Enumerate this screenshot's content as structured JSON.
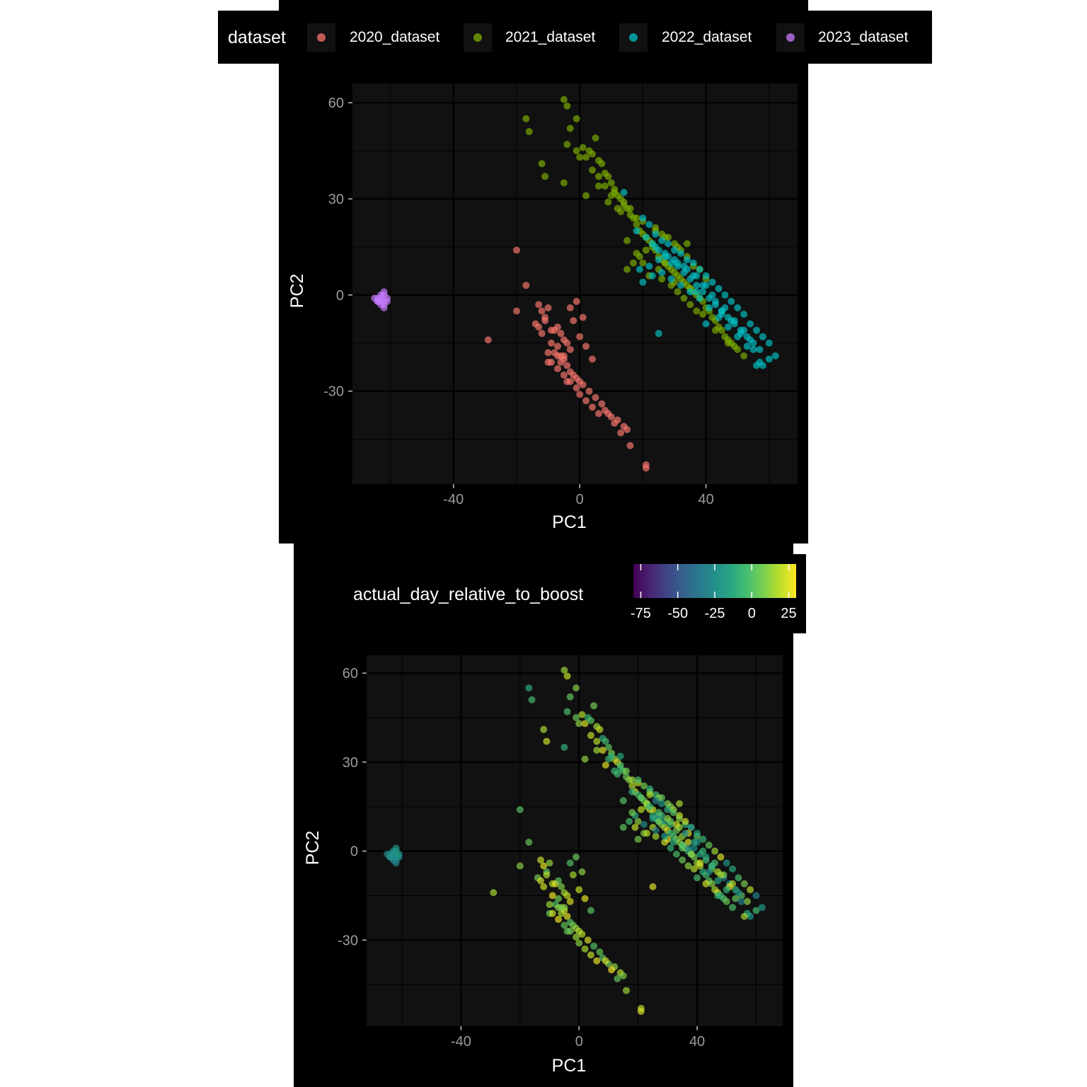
{
  "legend_top": {
    "title": "dataset",
    "items": [
      {
        "label": "2020_dataset",
        "color": "#F8766D"
      },
      {
        "label": "2021_dataset",
        "color": "#7CAE00"
      },
      {
        "label": "2022_dataset",
        "color": "#00BFC4"
      },
      {
        "label": "2023_dataset",
        "color": "#C77CFF"
      }
    ]
  },
  "legend_bottom": {
    "title": "actual_day_relative_to_boost",
    "ticks": [
      "-75",
      "-50",
      "-25",
      "0",
      "25"
    ],
    "range": [
      -80,
      30
    ],
    "tick_values": [
      -75,
      -50,
      -25,
      0,
      25
    ],
    "palette": "viridis"
  },
  "chart_data": [
    {
      "type": "scatter",
      "xlabel": "PC1",
      "ylabel": "PC2",
      "xlim": [
        -72,
        69
      ],
      "ylim": [
        -59,
        66
      ],
      "x_ticks": [
        "-40",
        "0",
        "40"
      ],
      "y_ticks": [
        "60",
        "30",
        "0",
        "-30"
      ],
      "background": "#111111",
      "grid": true,
      "color_by": "dataset",
      "series": [
        {
          "name": "2020_dataset",
          "color": "#F8766D",
          "x": [
            -20,
            -17,
            -20,
            -29,
            -13,
            -12,
            -11,
            -14,
            -10,
            -9,
            -12,
            -8,
            -7,
            -6,
            -5,
            -4,
            -3,
            -8,
            -10,
            -7,
            -6,
            -5,
            -4,
            -3,
            -2,
            -1,
            0,
            -9,
            -7,
            -5,
            -3,
            -1,
            1,
            3,
            5,
            7,
            0,
            2,
            4,
            6,
            8,
            10,
            12,
            14,
            9,
            11,
            13,
            15,
            16,
            21,
            21,
            -3,
            -1,
            1,
            -2,
            0,
            2,
            4,
            -7,
            -5,
            -11,
            -13,
            -9,
            -4,
            -6,
            -10
          ],
          "y": [
            14,
            3,
            -5,
            -14,
            -3,
            -5,
            -7,
            -9,
            -4,
            -11,
            -12,
            -11,
            -10,
            -12,
            -14,
            -15,
            -17,
            -18,
            -21,
            -19,
            -21,
            -20,
            -22,
            -24,
            -25,
            -26,
            -27,
            -21,
            -23,
            -25,
            -27,
            -29,
            -28,
            -30,
            -32,
            -34,
            -31,
            -33,
            -35,
            -37,
            -36,
            -38,
            -39,
            -41,
            -37,
            -40,
            -43,
            -42,
            -47,
            -53,
            -54,
            -4,
            -2,
            -7,
            -8,
            -13,
            -16,
            -20,
            -16,
            -19,
            -8,
            -10,
            -15,
            -27,
            -19,
            -18
          ]
        },
        {
          "name": "2021_dataset",
          "color": "#7CAE00",
          "x": [
            -5,
            -4,
            -17,
            -16,
            -3,
            -1,
            -12,
            -11,
            -5,
            -4,
            -1,
            0,
            1,
            2,
            3,
            4,
            5,
            6,
            7,
            8,
            9,
            10,
            11,
            12,
            13,
            14,
            15,
            16,
            17,
            18,
            19,
            20,
            21,
            22,
            23,
            24,
            25,
            26,
            27,
            28,
            29,
            30,
            31,
            32,
            33,
            34,
            35,
            36,
            37,
            38,
            39,
            40,
            41,
            42,
            43,
            44,
            45,
            46,
            47,
            48,
            49,
            50,
            2,
            6,
            8,
            10,
            14,
            16,
            18,
            20,
            24,
            26,
            28,
            30,
            32,
            34,
            36,
            38,
            40,
            20,
            25,
            30,
            35,
            24,
            27,
            23,
            21,
            19,
            17,
            15,
            22,
            26,
            29,
            31,
            33,
            35,
            37,
            39,
            9,
            12,
            15,
            18,
            6,
            4,
            11,
            13,
            27,
            31,
            34,
            43,
            47,
            52
          ],
          "y": [
            61,
            59,
            55,
            51,
            52,
            55,
            41,
            37,
            35,
            47,
            45,
            43,
            46,
            43,
            45,
            44,
            49,
            42,
            41,
            38,
            37,
            35,
            33,
            31,
            30,
            28,
            27,
            25,
            24,
            22,
            20,
            19,
            18,
            17,
            15,
            14,
            12,
            11,
            10,
            9,
            8,
            7,
            6,
            5,
            4,
            3,
            2,
            1,
            0,
            -1,
            -2,
            -4,
            -5,
            -7,
            -8,
            -10,
            -11,
            -13,
            -14,
            -15,
            -16,
            -17,
            31,
            37,
            34,
            31,
            29,
            27,
            24,
            23,
            21,
            19,
            18,
            16,
            14,
            12,
            9,
            8,
            5,
            10,
            8,
            4,
            2,
            20,
            18,
            16,
            14,
            12,
            10,
            8,
            6,
            5,
            3,
            1,
            -1,
            -3,
            -5,
            -6,
            29,
            27,
            17,
            13,
            34,
            39,
            32,
            26,
            10,
            15,
            16,
            -11,
            -15,
            -19
          ]
        },
        {
          "name": "2022_dataset",
          "color": "#00BFC4",
          "x": [
            14,
            20,
            22,
            24,
            26,
            28,
            30,
            32,
            34,
            36,
            38,
            40,
            42,
            44,
            46,
            48,
            50,
            52,
            54,
            56,
            58,
            60,
            62,
            18,
            21,
            23,
            25,
            27,
            29,
            31,
            33,
            35,
            37,
            39,
            41,
            43,
            45,
            47,
            49,
            51,
            53,
            55,
            57,
            19,
            22,
            25,
            28,
            31,
            34,
            37,
            40,
            43,
            46,
            49,
            52,
            55,
            58,
            24,
            27,
            30,
            33,
            36,
            39,
            42,
            45,
            48,
            51,
            54,
            57,
            60,
            20,
            23,
            26,
            29,
            32,
            35,
            38,
            41,
            44,
            47,
            50,
            53,
            56,
            25,
            37,
            45,
            40
          ],
          "y": [
            32,
            24,
            22,
            19,
            17,
            16,
            14,
            13,
            11,
            10,
            8,
            6,
            4,
            2,
            0,
            -2,
            -4,
            -6,
            -9,
            -11,
            -13,
            -15,
            -19,
            20,
            18,
            16,
            14,
            12,
            10,
            9,
            7,
            5,
            3,
            1,
            -1,
            -3,
            -5,
            -7,
            -9,
            -11,
            -13,
            -15,
            -17,
            8,
            9,
            11,
            12,
            10,
            8,
            6,
            3,
            -2,
            -4,
            -8,
            -11,
            -17,
            -22,
            15,
            13,
            11,
            9,
            6,
            3,
            0,
            -6,
            -8,
            -12,
            -14,
            -21,
            -20,
            4,
            6,
            7,
            5,
            3,
            1,
            -1,
            -4,
            -7,
            -10,
            -13,
            -16,
            -22,
            -12,
            1,
            -5,
            -9
          ]
        },
        {
          "name": "2023_dataset",
          "color": "#C77CFF",
          "x": [
            -62,
            -63,
            -64,
            -63,
            -62,
            -61,
            -62,
            -63,
            -64,
            -62,
            -63,
            -61,
            -62,
            -65,
            -64
          ],
          "y": [
            0,
            -1,
            -1,
            -2,
            -2,
            -1,
            -3,
            -3,
            -2,
            1,
            0,
            -2,
            -4,
            -1,
            -2
          ]
        }
      ]
    },
    {
      "type": "scatter",
      "xlabel": "PC1",
      "ylabel": "PC2",
      "xlim": [
        -72,
        69
      ],
      "ylim": [
        -59,
        66
      ],
      "x_ticks": [
        "-40",
        "0",
        "40"
      ],
      "y_ticks": [
        "60",
        "30",
        "0",
        "-30"
      ],
      "background": "#111111",
      "grid": true,
      "color_by": "actual_day_relative_to_boost",
      "same_points_as": 0,
      "note_values_by_dataset": {
        "2020_dataset": [
          0,
          28
        ],
        "2021_dataset": [
          -10,
          25
        ],
        "2022_dataset": [
          -30,
          25
        ],
        "2023_dataset": [
          -30,
          -20
        ]
      }
    }
  ]
}
